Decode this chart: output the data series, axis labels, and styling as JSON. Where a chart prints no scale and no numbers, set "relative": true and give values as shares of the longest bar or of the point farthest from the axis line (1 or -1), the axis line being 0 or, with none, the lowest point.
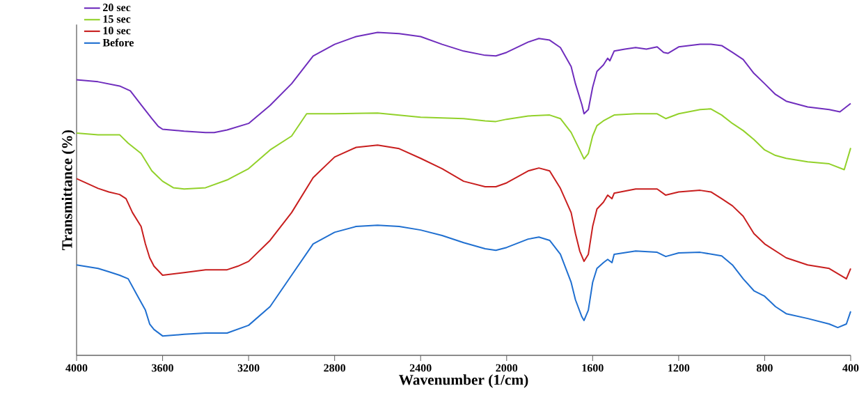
{
  "chart_data": {
    "type": "line",
    "xlabel": "Wavenumber (1/cm)",
    "ylabel": "Transmittance (%)",
    "relative": true,
    "xlim": [
      4000,
      400
    ],
    "xticks": [
      4000,
      3600,
      3200,
      2800,
      2400,
      2000,
      1600,
      1200,
      800,
      400
    ],
    "legend": "top left",
    "grid": false,
    "series": [
      {
        "name": "20 sec",
        "color": "#6f2dbd",
        "x": [
          4000,
          3900,
          3800,
          3750,
          3700,
          3650,
          3620,
          3600,
          3500,
          3400,
          3360,
          3300,
          3200,
          3100,
          3000,
          2900,
          2800,
          2700,
          2600,
          2500,
          2400,
          2300,
          2200,
          2100,
          2050,
          2000,
          1900,
          1850,
          1800,
          1750,
          1700,
          1680,
          1650,
          1640,
          1620,
          1600,
          1580,
          1550,
          1530,
          1520,
          1500,
          1450,
          1400,
          1350,
          1300,
          1270,
          1250,
          1200,
          1100,
          1050,
          1000,
          950,
          900,
          850,
          800,
          750,
          700,
          600,
          500,
          450,
          400
        ],
        "values": [
          0.853,
          0.847,
          0.834,
          0.819,
          0.776,
          0.733,
          0.709,
          0.7,
          0.694,
          0.69,
          0.69,
          0.698,
          0.718,
          0.774,
          0.841,
          0.927,
          0.963,
          0.987,
          1,
          0.996,
          0.987,
          0.963,
          0.942,
          0.929,
          0.927,
          0.938,
          0.97,
          0.981,
          0.976,
          0.953,
          0.894,
          0.841,
          0.776,
          0.748,
          0.761,
          0.83,
          0.879,
          0.899,
          0.92,
          0.912,
          0.942,
          0.948,
          0.953,
          0.948,
          0.955,
          0.938,
          0.935,
          0.955,
          0.963,
          0.963,
          0.959,
          0.938,
          0.916,
          0.873,
          0.841,
          0.808,
          0.787,
          0.769,
          0.761,
          0.754,
          0.78
        ]
      },
      {
        "name": "15 sec",
        "color": "#92d12a",
        "x": [
          4000,
          3900,
          3800,
          3760,
          3700,
          3650,
          3600,
          3550,
          3500,
          3400,
          3300,
          3200,
          3100,
          3000,
          2930,
          2800,
          2600,
          2400,
          2200,
          2100,
          2050,
          2000,
          1900,
          1800,
          1750,
          1700,
          1660,
          1640,
          1620,
          1600,
          1580,
          1550,
          1500,
          1400,
          1300,
          1260,
          1200,
          1100,
          1050,
          1000,
          950,
          900,
          850,
          800,
          750,
          700,
          600,
          500,
          430,
          400
        ],
        "values": [
          0.688,
          0.683,
          0.683,
          0.657,
          0.625,
          0.571,
          0.539,
          0.519,
          0.515,
          0.519,
          0.543,
          0.578,
          0.636,
          0.679,
          0.748,
          0.748,
          0.75,
          0.737,
          0.733,
          0.726,
          0.724,
          0.731,
          0.741,
          0.744,
          0.733,
          0.69,
          0.636,
          0.608,
          0.625,
          0.679,
          0.711,
          0.726,
          0.744,
          0.748,
          0.748,
          0.733,
          0.748,
          0.761,
          0.763,
          0.744,
          0.718,
          0.696,
          0.668,
          0.636,
          0.619,
          0.61,
          0.599,
          0.593,
          0.575,
          0.642
        ]
      },
      {
        "name": "10 sec",
        "color": "#c81e1e",
        "x": [
          4000,
          3950,
          3900,
          3850,
          3800,
          3770,
          3740,
          3700,
          3680,
          3660,
          3640,
          3600,
          3500,
          3400,
          3300,
          3250,
          3200,
          3100,
          3000,
          2900,
          2800,
          2700,
          2600,
          2500,
          2400,
          2300,
          2200,
          2100,
          2050,
          2000,
          1900,
          1850,
          1800,
          1750,
          1700,
          1680,
          1660,
          1640,
          1620,
          1600,
          1580,
          1550,
          1530,
          1510,
          1500,
          1400,
          1300,
          1260,
          1200,
          1100,
          1050,
          1000,
          950,
          900,
          850,
          800,
          700,
          600,
          500,
          420,
          400
        ],
        "values": [
          0.547,
          0.532,
          0.517,
          0.506,
          0.498,
          0.485,
          0.442,
          0.399,
          0.345,
          0.302,
          0.276,
          0.248,
          0.256,
          0.265,
          0.265,
          0.276,
          0.291,
          0.356,
          0.442,
          0.55,
          0.614,
          0.644,
          0.651,
          0.64,
          0.61,
          0.578,
          0.539,
          0.522,
          0.522,
          0.534,
          0.571,
          0.58,
          0.571,
          0.517,
          0.442,
          0.377,
          0.323,
          0.291,
          0.313,
          0.399,
          0.453,
          0.474,
          0.496,
          0.485,
          0.502,
          0.515,
          0.515,
          0.496,
          0.506,
          0.511,
          0.506,
          0.485,
          0.463,
          0.431,
          0.377,
          0.345,
          0.302,
          0.28,
          0.269,
          0.237,
          0.269
        ]
      },
      {
        "name": "Before",
        "color": "#1f6fd0",
        "x": [
          4000,
          3900,
          3850,
          3800,
          3760,
          3720,
          3680,
          3660,
          3640,
          3600,
          3500,
          3400,
          3300,
          3200,
          3100,
          3000,
          2900,
          2800,
          2700,
          2600,
          2500,
          2400,
          2300,
          2200,
          2100,
          2050,
          2000,
          1900,
          1850,
          1800,
          1750,
          1700,
          1680,
          1650,
          1640,
          1620,
          1600,
          1580,
          1550,
          1530,
          1510,
          1500,
          1400,
          1300,
          1260,
          1200,
          1100,
          1000,
          950,
          900,
          850,
          800,
          750,
          700,
          600,
          500,
          460,
          420,
          400
        ],
        "values": [
          0.28,
          0.269,
          0.259,
          0.248,
          0.237,
          0.188,
          0.14,
          0.097,
          0.08,
          0.06,
          0.065,
          0.069,
          0.069,
          0.093,
          0.151,
          0.248,
          0.345,
          0.381,
          0.399,
          0.403,
          0.399,
          0.388,
          0.371,
          0.349,
          0.33,
          0.325,
          0.334,
          0.36,
          0.366,
          0.356,
          0.313,
          0.226,
          0.172,
          0.119,
          0.108,
          0.14,
          0.226,
          0.269,
          0.287,
          0.297,
          0.287,
          0.313,
          0.323,
          0.319,
          0.306,
          0.317,
          0.319,
          0.308,
          0.28,
          0.237,
          0.2,
          0.183,
          0.151,
          0.129,
          0.114,
          0.097,
          0.086,
          0.097,
          0.136
        ]
      }
    ]
  }
}
